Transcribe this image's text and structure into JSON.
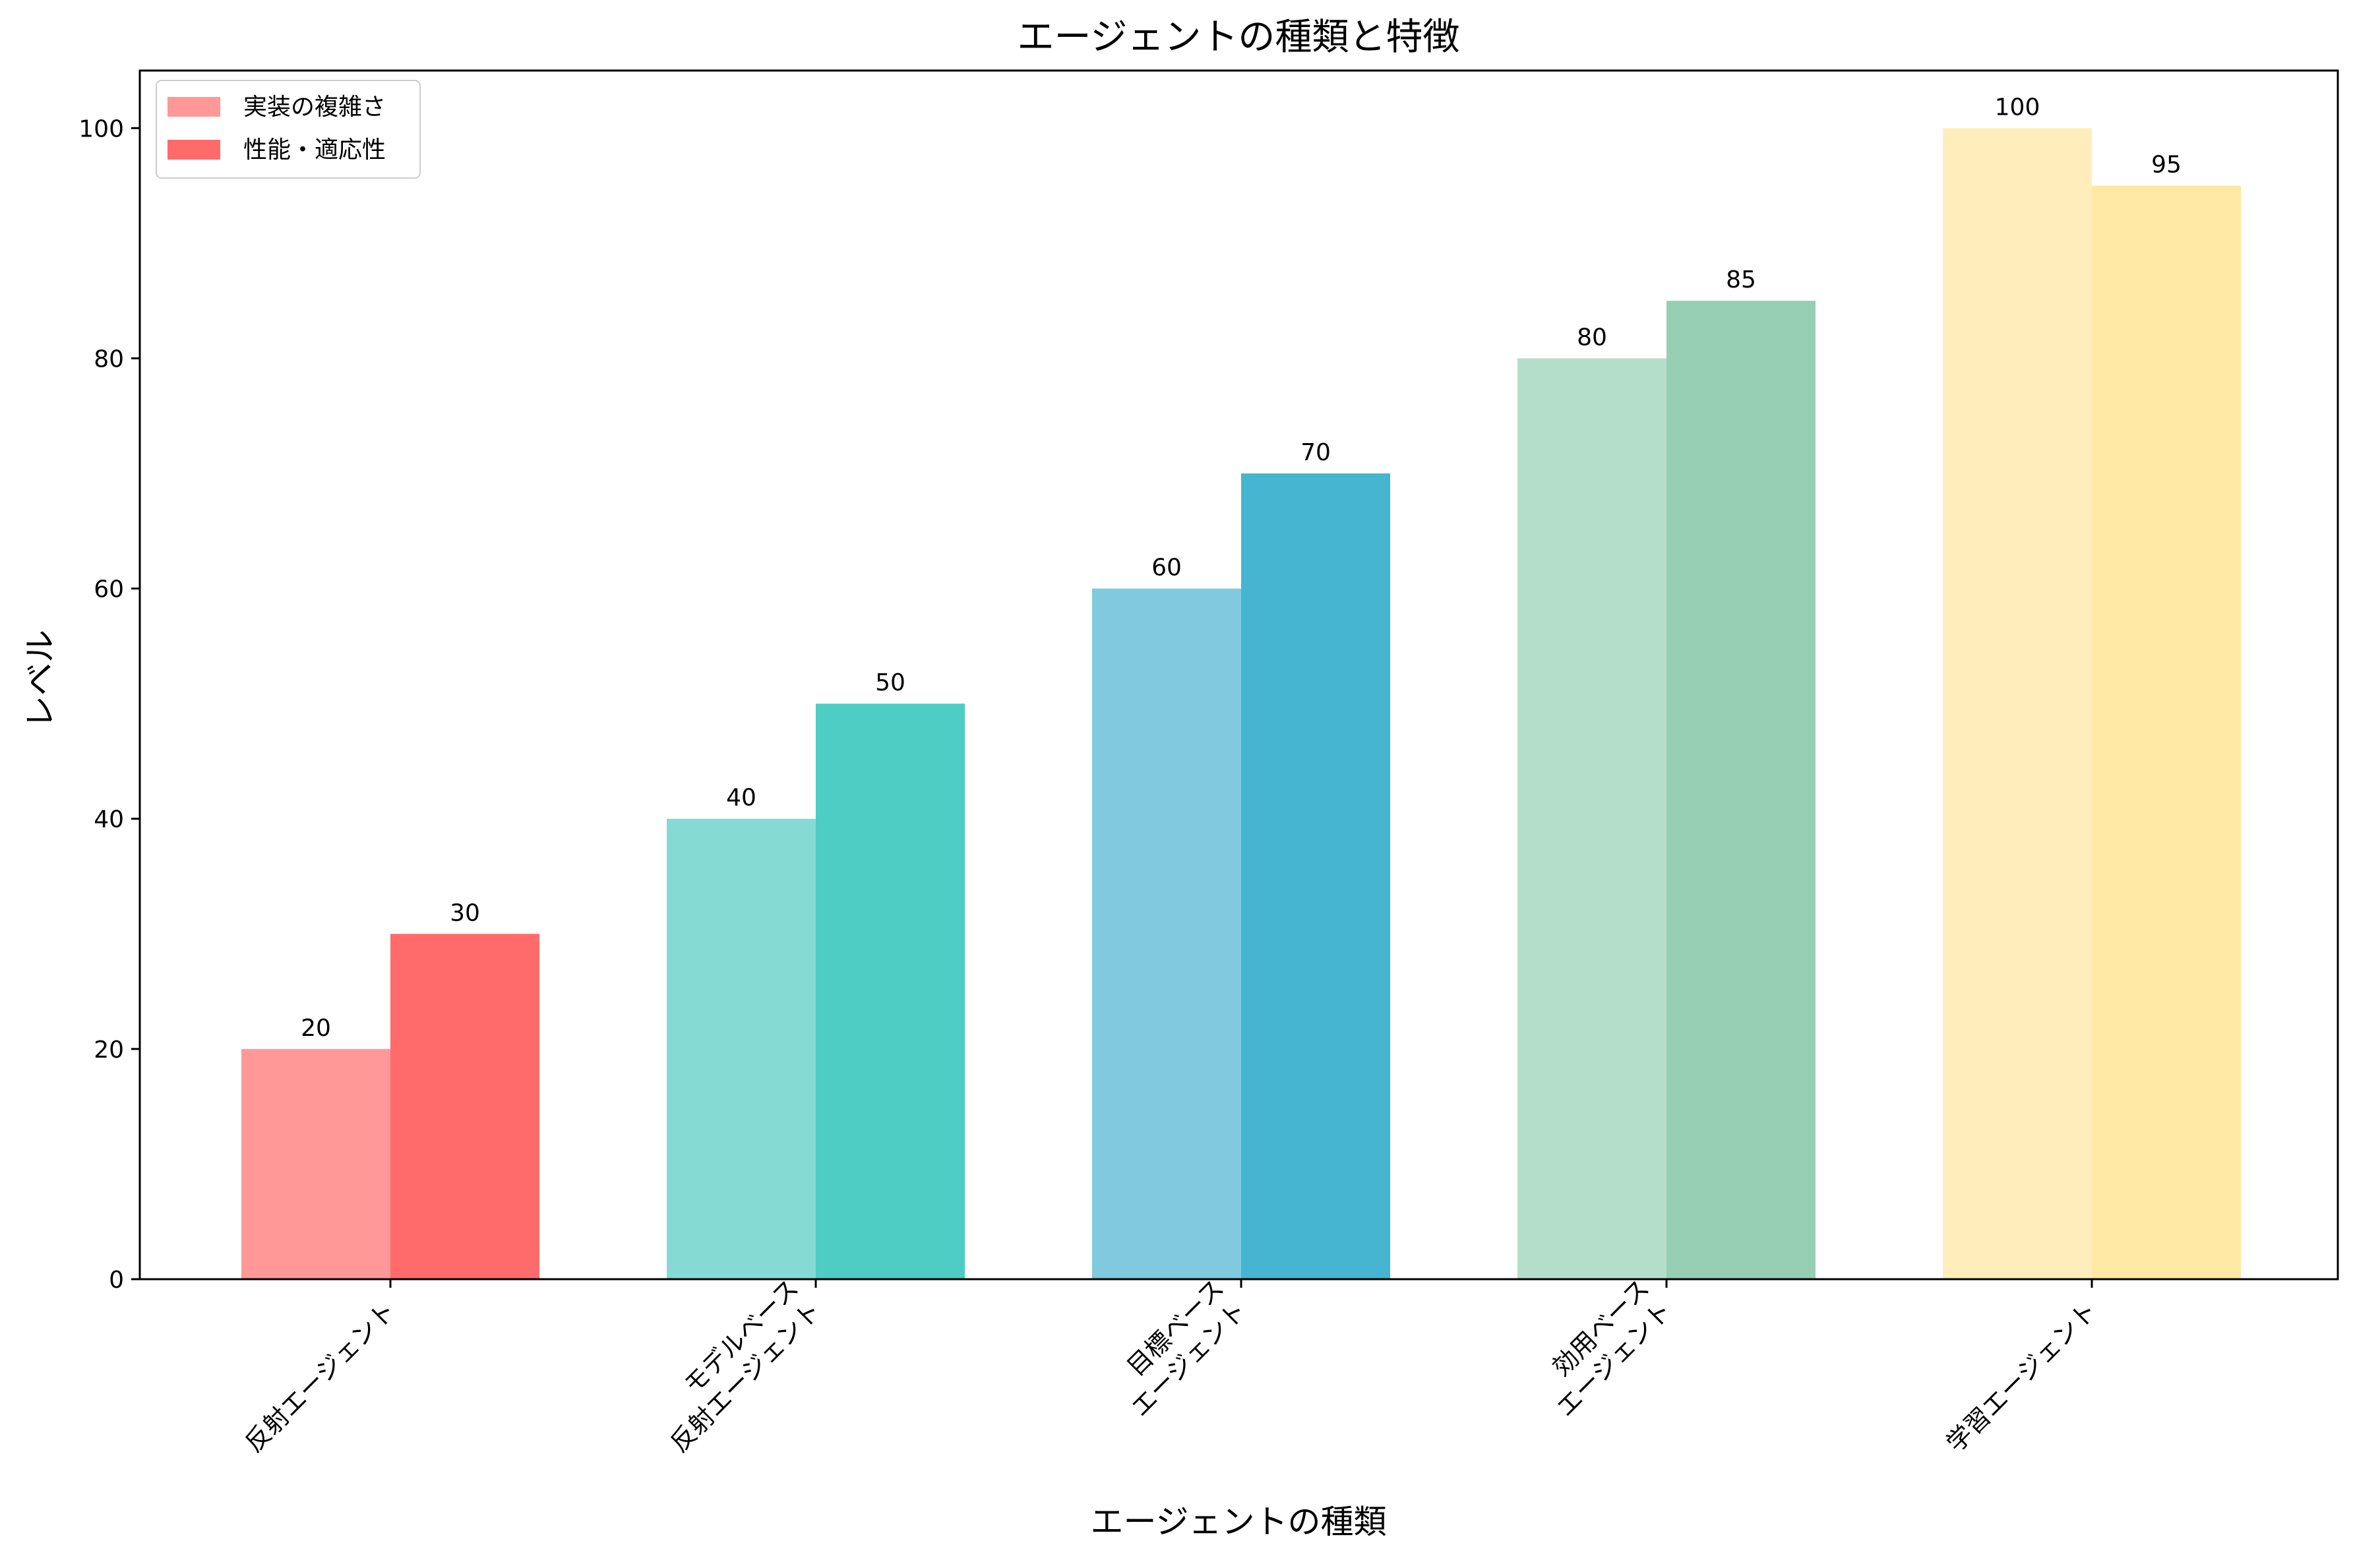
{
  "chart_data": {
    "type": "bar",
    "title": "エージェントの種類と特徴",
    "xlabel": "エージェントの種類",
    "ylabel": "レベル",
    "ylim": [
      0,
      105
    ],
    "yticks": [
      0,
      20,
      40,
      60,
      80,
      100
    ],
    "grid": false,
    "legend_position": "top-left",
    "categories": [
      [
        "反射エージェント"
      ],
      [
        "モデルベース",
        "反射エージェント"
      ],
      [
        "目標ベース",
        "エージェント"
      ],
      [
        "効用ベース",
        "エージェント"
      ],
      [
        "学習エージェント"
      ]
    ],
    "series": [
      {
        "name": "実装の複雑さ",
        "values": [
          20,
          40,
          60,
          80,
          100
        ],
        "colors": [
          "#ff9896",
          "#85dbd4",
          "#80c9de",
          "#b4dec9",
          "#ffeebc"
        ],
        "legend_color": "#ff9896"
      },
      {
        "name": "性能・適応性",
        "values": [
          30,
          50,
          70,
          85,
          95
        ],
        "colors": [
          "#ff6b6b",
          "#4ecdc4",
          "#45b5d1",
          "#96ceb4",
          "#ffe8a3"
        ],
        "legend_color": "#ff6b6b"
      }
    ]
  }
}
